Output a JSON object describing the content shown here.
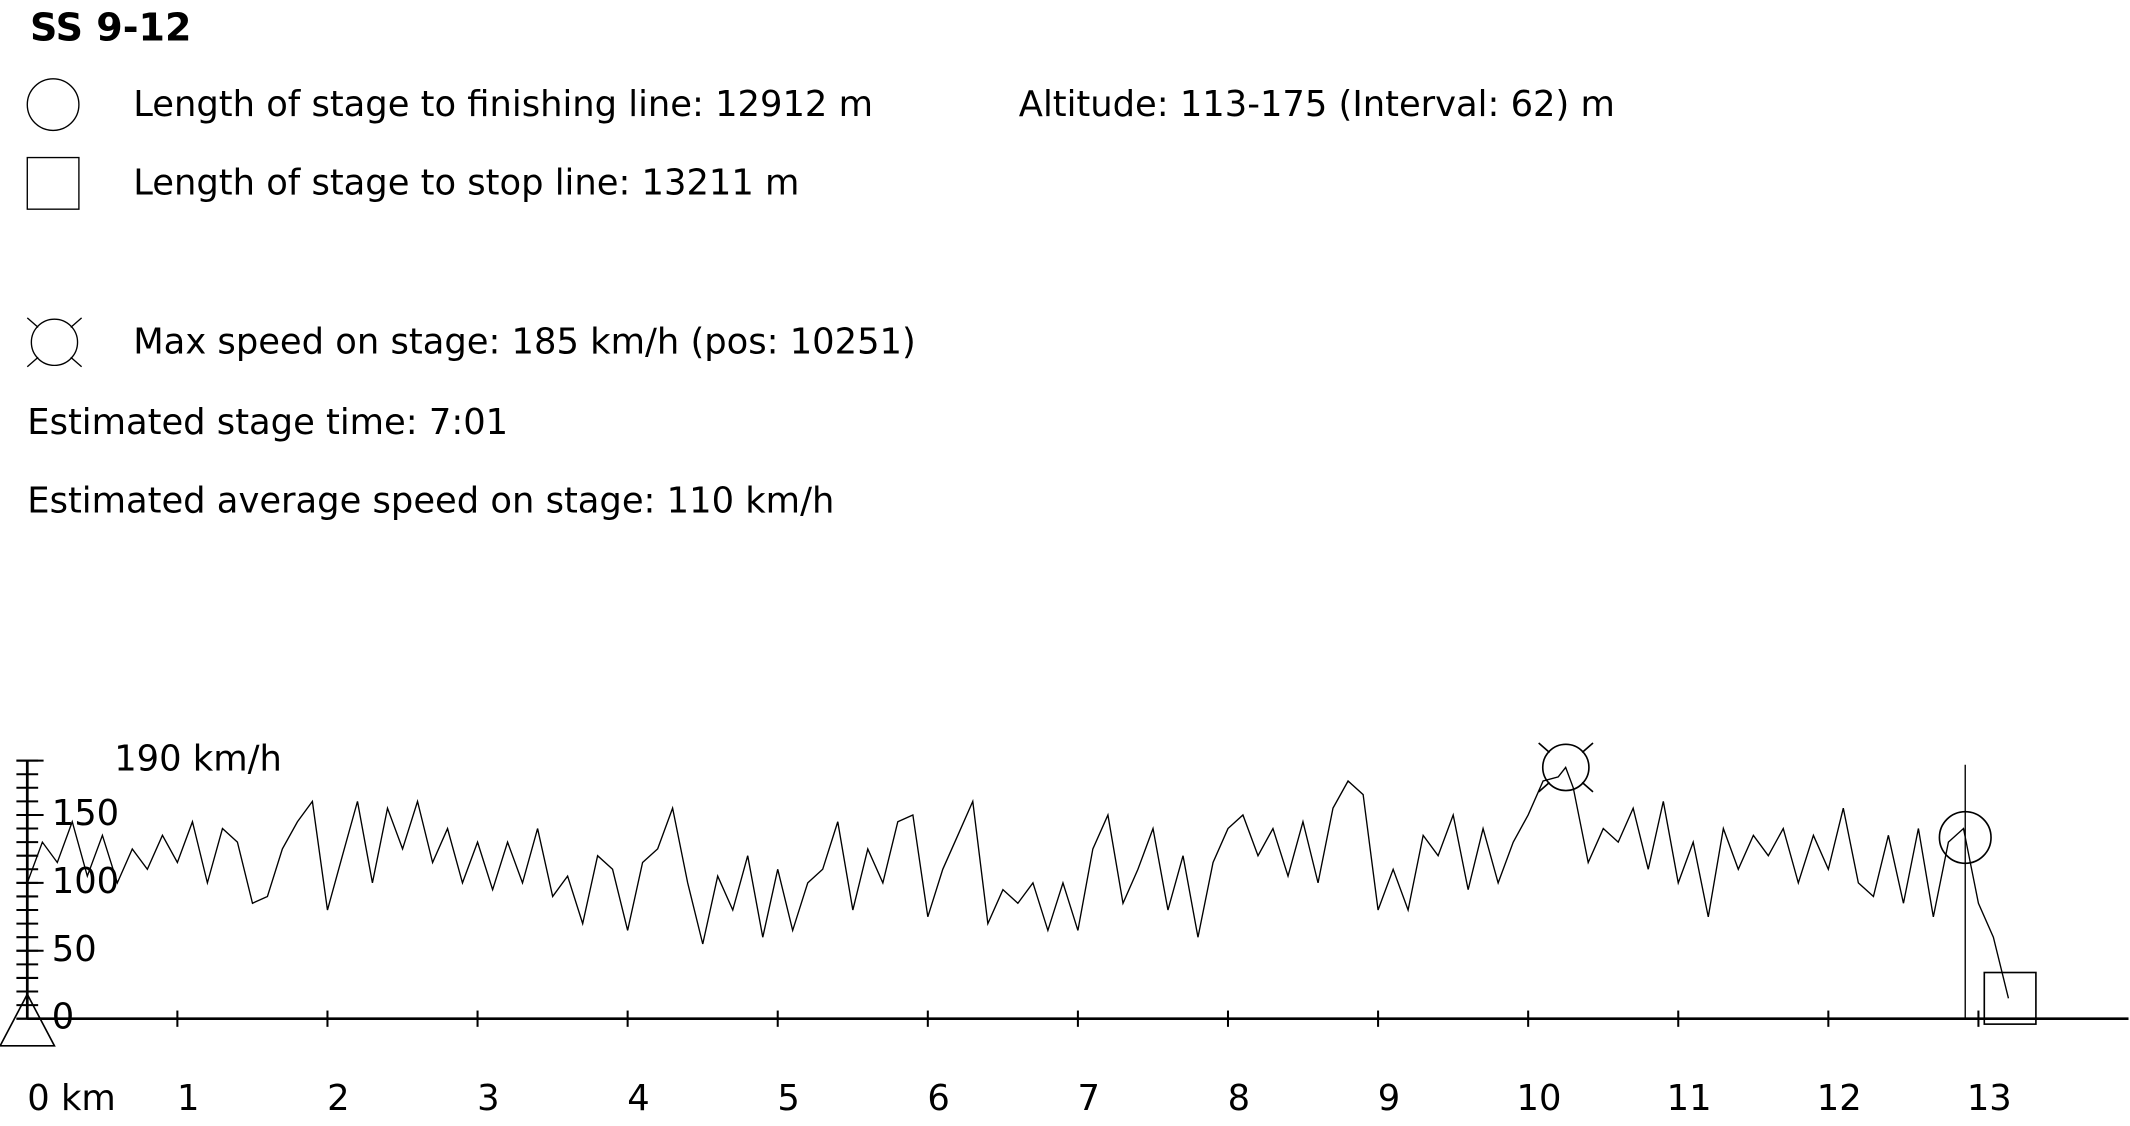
{
  "chart_data": {
    "type": "line",
    "title": "SS 9-12",
    "annotations": [
      {
        "text": "Length of stage to finishing line: 12912 m",
        "color": "#000000"
      },
      {
        "text": "Altitude: 113-175 (Interval: 62) m",
        "color": "#0000ff"
      },
      {
        "text": "Length of stage to stop line: 13211 m",
        "color": "#000000"
      },
      {
        "text": "Max speed on stage: 185 km/h (pos: 10251)",
        "color": "#000000"
      },
      {
        "text": "Estimated stage time: 7:01",
        "color": "#000000"
      },
      {
        "text": "Estimated average speed on stage: 110 km/h",
        "color": "#000000"
      }
    ],
    "color": "#000000",
    "x": [
      0,
      0.1,
      0.2,
      0.3,
      0.4,
      0.5,
      0.6,
      0.7,
      0.8,
      0.9,
      1,
      1.1,
      1.2,
      1.3,
      1.4,
      1.5,
      1.6,
      1.7,
      1.8,
      1.9,
      2,
      2.1,
      2.2,
      2.3,
      2.4,
      2.5,
      2.6,
      2.7,
      2.8,
      2.9,
      3,
      3.1,
      3.2,
      3.3,
      3.4,
      3.5,
      3.6,
      3.7,
      3.8,
      3.9,
      4,
      4.1,
      4.2,
      4.3,
      4.4,
      4.5,
      4.6,
      4.7,
      4.8,
      4.9,
      5,
      5.1,
      5.2,
      5.3,
      5.4,
      5.5,
      5.6,
      5.7,
      5.8,
      5.9,
      6,
      6.1,
      6.2,
      6.3,
      6.4,
      6.5,
      6.6,
      6.7,
      6.8,
      6.9,
      7,
      7.1,
      7.2,
      7.3,
      7.4,
      7.5,
      7.6,
      7.7,
      7.8,
      7.9,
      8,
      8.1,
      8.2,
      8.3,
      8.4,
      8.5,
      8.6,
      8.7,
      8.8,
      8.9,
      9,
      9.1,
      9.2,
      9.3,
      9.4,
      9.5,
      9.6,
      9.7,
      9.8,
      9.9,
      10,
      10.1,
      10.2,
      10.25,
      10.3,
      10.4,
      10.5,
      10.6,
      10.7,
      10.8,
      10.9,
      11,
      11.1,
      11.2,
      11.3,
      11.4,
      11.5,
      11.6,
      11.7,
      11.8,
      11.9,
      12,
      12.1,
      12.2,
      12.3,
      12.4,
      12.5,
      12.6,
      12.7,
      12.8,
      12.9,
      13,
      13.1,
      13.2
    ],
    "values": [
      100,
      130,
      115,
      145,
      105,
      135,
      100,
      125,
      110,
      135,
      115,
      145,
      100,
      140,
      130,
      85,
      90,
      125,
      145,
      160,
      80,
      120,
      160,
      100,
      155,
      125,
      160,
      115,
      140,
      100,
      130,
      95,
      130,
      100,
      140,
      90,
      105,
      70,
      120,
      110,
      65,
      115,
      125,
      155,
      100,
      55,
      105,
      80,
      120,
      60,
      110,
      65,
      100,
      110,
      145,
      80,
      125,
      100,
      145,
      150,
      75,
      110,
      135,
      160,
      70,
      95,
      85,
      100,
      65,
      100,
      65,
      125,
      150,
      85,
      110,
      140,
      80,
      120,
      60,
      115,
      140,
      150,
      120,
      140,
      105,
      145,
      100,
      155,
      175,
      165,
      80,
      110,
      80,
      135,
      120,
      150,
      95,
      140,
      100,
      130,
      150,
      175,
      178,
      185,
      170,
      115,
      140,
      130,
      155,
      110,
      160,
      100,
      130,
      75,
      140,
      110,
      135,
      120,
      140,
      100,
      135,
      110,
      155,
      100,
      90,
      135,
      85,
      140,
      75,
      130,
      140,
      85,
      60,
      15
    ],
    "xlim": [
      0,
      14
    ],
    "ylim": [
      0,
      190
    ],
    "xticks": [
      {
        "value": 0,
        "label": "0 km"
      },
      1,
      2,
      3,
      4,
      5,
      6,
      7,
      8,
      9,
      10,
      11,
      12,
      13
    ],
    "yticks": [
      0,
      50,
      100,
      150,
      {
        "value": 190,
        "label": "190 km/h"
      }
    ],
    "yminor_ticks": [
      0,
      10,
      20,
      30,
      40,
      50,
      60,
      70,
      80,
      90,
      100,
      110,
      120,
      130,
      140,
      150,
      160,
      170,
      180,
      190
    ],
    "finish_x": 12.912,
    "stop_x": 13.211,
    "max_speed_point": {
      "x": 10.251,
      "y": 185
    }
  }
}
